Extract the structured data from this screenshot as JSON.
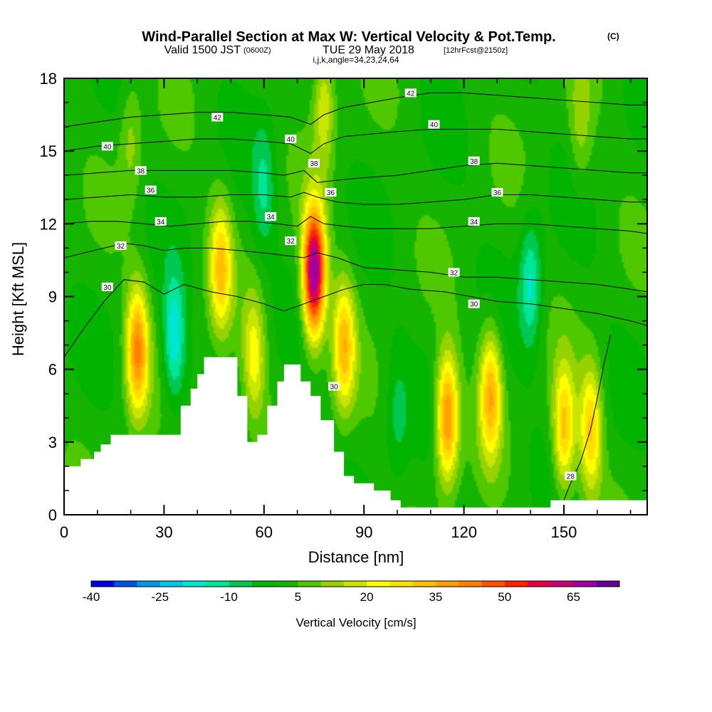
{
  "chart_data": {
    "type": "heatmap",
    "title": "Wind-Parallel Section at Max W: Vertical Velocity & Pot.Temp.",
    "title_mark": "(C)",
    "subtitle_main": "Valid 1500 JST",
    "subtitle_utc": "(0600Z)",
    "subtitle_date": "TUE 29 May 2018",
    "subtitle_fcst": "[12hrFcst@2150z]",
    "grid_info": "i,j,k,angle=34,23,24,64",
    "xlabel": "Distance [nm]",
    "ylabel": "Height [Kft MSL]",
    "xlim": [
      0,
      175
    ],
    "ylim": [
      0,
      18
    ],
    "x_ticks": [
      "0",
      "30",
      "60",
      "90",
      "120",
      "150"
    ],
    "y_ticks": [
      "0",
      "3",
      "6",
      "9",
      "12",
      "15",
      "18"
    ],
    "colorbar": {
      "label": "Vertical Velocity [cm/s]",
      "tick_labels": [
        "-40",
        "-25",
        "-10",
        "5",
        "20",
        "35",
        "50",
        "65"
      ],
      "levels": [
        -40,
        -35,
        -30,
        -25,
        -20,
        -15,
        -10,
        -5,
        0,
        5,
        10,
        15,
        20,
        25,
        30,
        35,
        40,
        45,
        50,
        55,
        60,
        65,
        70
      ],
      "colors": [
        "#0000e6",
        "#0050e6",
        "#0096e6",
        "#00c8e6",
        "#00e6d2",
        "#00e696",
        "#00c850",
        "#00b400",
        "#14b400",
        "#50c800",
        "#96d200",
        "#c8e600",
        "#ffff00",
        "#ffe000",
        "#ffc000",
        "#ffa000",
        "#ff8000",
        "#ff5000",
        "#ff2000",
        "#e6004b",
        "#c80078",
        "#a000a0",
        "#640096"
      ]
    },
    "w_features": [
      {
        "x": 22,
        "y": 6.8,
        "amp": 38
      },
      {
        "x": 33,
        "y": 7.2,
        "amp": -22
      },
      {
        "x": 47,
        "y": 10.2,
        "amp": 28
      },
      {
        "x": 57,
        "y": 6.5,
        "amp": 20
      },
      {
        "x": 75,
        "y": 10.0,
        "amp": 70
      },
      {
        "x": 84,
        "y": 7.0,
        "amp": 30
      },
      {
        "x": 100,
        "y": 4.0,
        "amp": -8
      },
      {
        "x": 115,
        "y": 4.0,
        "amp": 40
      },
      {
        "x": 128,
        "y": 5.0,
        "amp": 32
      },
      {
        "x": 140,
        "y": 9.5,
        "amp": -18
      },
      {
        "x": 150,
        "y": 3.5,
        "amp": 30
      },
      {
        "x": 158,
        "y": 3.5,
        "amp": 28
      },
      {
        "x": 60,
        "y": 13.5,
        "amp": -12
      },
      {
        "x": 20,
        "y": 15.5,
        "amp": 10
      },
      {
        "x": 155,
        "y": 16.0,
        "amp": 10
      },
      {
        "x": 78,
        "y": 17.0,
        "amp": 18
      }
    ],
    "terrain": [
      [
        0,
        2.0
      ],
      [
        5,
        2.0
      ],
      [
        5,
        2.3
      ],
      [
        9,
        2.3
      ],
      [
        9,
        2.6
      ],
      [
        11,
        2.6
      ],
      [
        11,
        2.9
      ],
      [
        14,
        2.9
      ],
      [
        14,
        3.3
      ],
      [
        35,
        3.3
      ],
      [
        35,
        4.5
      ],
      [
        38,
        4.5
      ],
      [
        38,
        5.2
      ],
      [
        40,
        5.2
      ],
      [
        40,
        5.8
      ],
      [
        42,
        5.8
      ],
      [
        42,
        6.5
      ],
      [
        52,
        6.5
      ],
      [
        52,
        4.9
      ],
      [
        55,
        4.9
      ],
      [
        55,
        3.0
      ],
      [
        58,
        3.0
      ],
      [
        58,
        3.3
      ],
      [
        61,
        3.3
      ],
      [
        61,
        4.5
      ],
      [
        64,
        4.5
      ],
      [
        64,
        5.5
      ],
      [
        66,
        5.5
      ],
      [
        66,
        6.2
      ],
      [
        71,
        6.2
      ],
      [
        71,
        5.5
      ],
      [
        74,
        5.5
      ],
      [
        74,
        4.9
      ],
      [
        77,
        4.9
      ],
      [
        77,
        3.9
      ],
      [
        81,
        3.9
      ],
      [
        81,
        2.6
      ],
      [
        84,
        2.6
      ],
      [
        84,
        1.6
      ],
      [
        87,
        1.6
      ],
      [
        87,
        1.3
      ],
      [
        93,
        1.3
      ],
      [
        93,
        1.0
      ],
      [
        98,
        1.0
      ],
      [
        98,
        0.6
      ],
      [
        101,
        0.6
      ],
      [
        101,
        0.3
      ],
      [
        146,
        0.3
      ],
      [
        146,
        0.6
      ],
      [
        175,
        0.6
      ]
    ],
    "theta_contours": [
      {
        "label": "30",
        "level": 30,
        "points": [
          [
            0,
            6.5
          ],
          [
            6,
            7.7
          ],
          [
            12,
            8.8
          ],
          [
            18,
            9.7
          ],
          [
            24,
            9.6
          ],
          [
            30,
            9.1
          ],
          [
            36,
            9.5
          ],
          [
            44,
            9.2
          ],
          [
            52,
            9.0
          ],
          [
            60,
            8.7
          ],
          [
            66,
            8.4
          ],
          [
            72,
            8.7
          ],
          [
            78,
            9.0
          ],
          [
            84,
            9.3
          ],
          [
            90,
            9.5
          ],
          [
            96,
            9.5
          ],
          [
            104,
            9.3
          ],
          [
            114,
            9.2
          ],
          [
            122,
            9.0
          ],
          [
            130,
            8.8
          ],
          [
            140,
            8.7
          ],
          [
            150,
            8.5
          ],
          [
            160,
            8.3
          ],
          [
            170,
            8.0
          ],
          [
            175,
            7.8
          ]
        ]
      },
      {
        "label": "32",
        "level": 32,
        "points": [
          [
            0,
            10.6
          ],
          [
            6,
            10.8
          ],
          [
            12,
            11.0
          ],
          [
            18,
            11.2
          ],
          [
            24,
            11.1
          ],
          [
            30,
            10.9
          ],
          [
            36,
            11.0
          ],
          [
            44,
            11.0
          ],
          [
            52,
            10.9
          ],
          [
            60,
            10.8
          ],
          [
            66,
            10.7
          ],
          [
            72,
            10.6
          ],
          [
            76,
            10.8
          ],
          [
            82,
            10.6
          ],
          [
            90,
            10.2
          ],
          [
            100,
            10.1
          ],
          [
            110,
            10.0
          ],
          [
            120,
            9.8
          ],
          [
            130,
            9.8
          ],
          [
            140,
            9.7
          ],
          [
            150,
            9.6
          ],
          [
            160,
            9.5
          ],
          [
            170,
            9.3
          ],
          [
            175,
            9.2
          ]
        ]
      },
      {
        "label": "34",
        "level": 34,
        "points": [
          [
            0,
            12.0
          ],
          [
            8,
            12.1
          ],
          [
            16,
            12.1
          ],
          [
            24,
            12.0
          ],
          [
            32,
            11.9
          ],
          [
            40,
            12.0
          ],
          [
            48,
            12.1
          ],
          [
            56,
            12.1
          ],
          [
            64,
            12.0
          ],
          [
            70,
            11.9
          ],
          [
            74,
            12.3
          ],
          [
            78,
            12.0
          ],
          [
            84,
            11.9
          ],
          [
            92,
            11.8
          ],
          [
            100,
            11.8
          ],
          [
            110,
            11.8
          ],
          [
            120,
            11.9
          ],
          [
            130,
            12.0
          ],
          [
            140,
            12.0
          ],
          [
            150,
            11.9
          ],
          [
            160,
            11.8
          ],
          [
            170,
            11.7
          ],
          [
            175,
            11.6
          ]
        ]
      },
      {
        "label": "36",
        "level": 36,
        "points": [
          [
            0,
            13.0
          ],
          [
            10,
            13.1
          ],
          [
            20,
            13.2
          ],
          [
            30,
            13.1
          ],
          [
            40,
            13.1
          ],
          [
            50,
            13.2
          ],
          [
            60,
            13.2
          ],
          [
            68,
            13.1
          ],
          [
            72,
            13.3
          ],
          [
            76,
            13.1
          ],
          [
            82,
            12.9
          ],
          [
            90,
            12.8
          ],
          [
            100,
            12.8
          ],
          [
            110,
            12.9
          ],
          [
            120,
            13.0
          ],
          [
            130,
            13.2
          ],
          [
            140,
            13.2
          ],
          [
            150,
            13.1
          ],
          [
            160,
            13.0
          ],
          [
            170,
            12.9
          ],
          [
            175,
            12.9
          ]
        ]
      },
      {
        "label": "38",
        "level": 38,
        "points": [
          [
            0,
            14.0
          ],
          [
            10,
            14.1
          ],
          [
            20,
            14.2
          ],
          [
            30,
            14.2
          ],
          [
            40,
            14.2
          ],
          [
            50,
            14.2
          ],
          [
            60,
            14.1
          ],
          [
            66,
            14.0
          ],
          [
            72,
            14.2
          ],
          [
            76,
            13.7
          ],
          [
            82,
            13.8
          ],
          [
            90,
            13.9
          ],
          [
            100,
            14.0
          ],
          [
            110,
            14.2
          ],
          [
            120,
            14.4
          ],
          [
            130,
            14.5
          ],
          [
            140,
            14.4
          ],
          [
            150,
            14.3
          ],
          [
            160,
            14.2
          ],
          [
            170,
            14.1
          ],
          [
            175,
            14.1
          ]
        ]
      },
      {
        "label": "40",
        "level": 40,
        "points": [
          [
            0,
            15.0
          ],
          [
            10,
            15.2
          ],
          [
            20,
            15.3
          ],
          [
            30,
            15.4
          ],
          [
            40,
            15.5
          ],
          [
            50,
            15.5
          ],
          [
            60,
            15.4
          ],
          [
            68,
            15.3
          ],
          [
            74,
            14.9
          ],
          [
            78,
            15.3
          ],
          [
            84,
            15.6
          ],
          [
            92,
            15.7
          ],
          [
            100,
            15.8
          ],
          [
            110,
            15.9
          ],
          [
            120,
            15.9
          ],
          [
            130,
            15.9
          ],
          [
            140,
            15.8
          ],
          [
            150,
            15.7
          ],
          [
            160,
            15.6
          ],
          [
            170,
            15.5
          ],
          [
            175,
            15.5
          ]
        ]
      },
      {
        "label": "42",
        "level": 42,
        "points": [
          [
            0,
            16.0
          ],
          [
            10,
            16.2
          ],
          [
            20,
            16.4
          ],
          [
            30,
            16.5
          ],
          [
            40,
            16.6
          ],
          [
            50,
            16.6
          ],
          [
            60,
            16.5
          ],
          [
            68,
            16.4
          ],
          [
            74,
            16.1
          ],
          [
            78,
            16.5
          ],
          [
            84,
            16.8
          ],
          [
            92,
            17.0
          ],
          [
            100,
            17.2
          ],
          [
            110,
            17.4
          ],
          [
            120,
            17.4
          ],
          [
            130,
            17.3
          ],
          [
            140,
            17.2
          ],
          [
            150,
            17.1
          ],
          [
            160,
            17.0
          ],
          [
            170,
            16.9
          ],
          [
            175,
            16.9
          ]
        ]
      },
      {
        "label": "28",
        "level": 28,
        "points": [
          [
            150,
            0.6
          ],
          [
            152,
            1.3
          ],
          [
            155,
            2.2
          ],
          [
            158,
            3.5
          ],
          [
            160,
            4.8
          ],
          [
            162,
            6.2
          ],
          [
            164,
            7.4
          ]
        ]
      }
    ],
    "contour_labels": [
      {
        "text": "42",
        "x": 46,
        "y": 16.4
      },
      {
        "text": "42",
        "x": 104,
        "y": 17.4
      },
      {
        "text": "40",
        "x": 13,
        "y": 15.2
      },
      {
        "text": "40",
        "x": 68,
        "y": 15.5
      },
      {
        "text": "40",
        "x": 111,
        "y": 16.1
      },
      {
        "text": "38",
        "x": 23,
        "y": 14.2
      },
      {
        "text": "38",
        "x": 75,
        "y": 14.5
      },
      {
        "text": "38",
        "x": 123,
        "y": 14.6
      },
      {
        "text": "36",
        "x": 26,
        "y": 13.4
      },
      {
        "text": "36",
        "x": 80,
        "y": 13.3
      },
      {
        "text": "36",
        "x": 130,
        "y": 13.3
      },
      {
        "text": "34",
        "x": 29,
        "y": 12.1
      },
      {
        "text": "34",
        "x": 62,
        "y": 12.3
      },
      {
        "text": "34",
        "x": 123,
        "y": 12.1
      },
      {
        "text": "32",
        "x": 17,
        "y": 11.1
      },
      {
        "text": "32",
        "x": 68,
        "y": 11.3
      },
      {
        "text": "32",
        "x": 117,
        "y": 10.0
      },
      {
        "text": "30",
        "x": 13,
        "y": 9.4
      },
      {
        "text": "30",
        "x": 81,
        "y": 5.3
      },
      {
        "text": "30",
        "x": 123,
        "y": 8.7
      },
      {
        "text": "28",
        "x": 152,
        "y": 1.6
      }
    ]
  }
}
